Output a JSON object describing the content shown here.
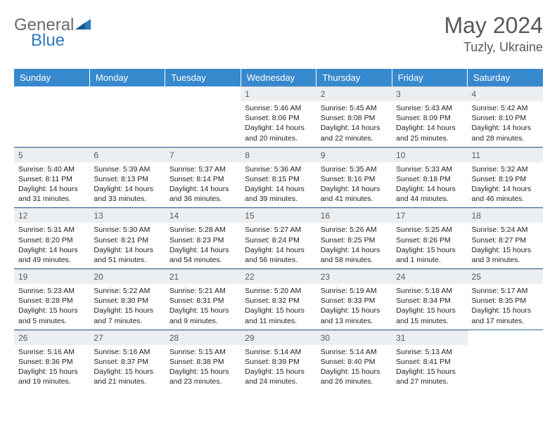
{
  "logo": {
    "general": "General",
    "blue": "Blue"
  },
  "header": {
    "month": "May 2024",
    "location": "Tuzly, Ukraine"
  },
  "colors": {
    "header_bg": "#3789ce",
    "header_text": "#ffffff",
    "daynum_bg": "#eceff1",
    "daynum_text": "#595959",
    "border": "#336699",
    "logo_gray": "#6a6a6a",
    "logo_blue": "#2f7ac0"
  },
  "dayNames": [
    "Sunday",
    "Monday",
    "Tuesday",
    "Wednesday",
    "Thursday",
    "Friday",
    "Saturday"
  ],
  "weeks": [
    [
      null,
      null,
      null,
      {
        "num": "1",
        "sunrise": "Sunrise: 5:46 AM",
        "sunset": "Sunset: 8:06 PM",
        "day1": "Daylight: 14 hours",
        "day2": "and 20 minutes."
      },
      {
        "num": "2",
        "sunrise": "Sunrise: 5:45 AM",
        "sunset": "Sunset: 8:08 PM",
        "day1": "Daylight: 14 hours",
        "day2": "and 22 minutes."
      },
      {
        "num": "3",
        "sunrise": "Sunrise: 5:43 AM",
        "sunset": "Sunset: 8:09 PM",
        "day1": "Daylight: 14 hours",
        "day2": "and 25 minutes."
      },
      {
        "num": "4",
        "sunrise": "Sunrise: 5:42 AM",
        "sunset": "Sunset: 8:10 PM",
        "day1": "Daylight: 14 hours",
        "day2": "and 28 minutes."
      }
    ],
    [
      {
        "num": "5",
        "sunrise": "Sunrise: 5:40 AM",
        "sunset": "Sunset: 8:11 PM",
        "day1": "Daylight: 14 hours",
        "day2": "and 31 minutes."
      },
      {
        "num": "6",
        "sunrise": "Sunrise: 5:39 AM",
        "sunset": "Sunset: 8:13 PM",
        "day1": "Daylight: 14 hours",
        "day2": "and 33 minutes."
      },
      {
        "num": "7",
        "sunrise": "Sunrise: 5:37 AM",
        "sunset": "Sunset: 8:14 PM",
        "day1": "Daylight: 14 hours",
        "day2": "and 36 minutes."
      },
      {
        "num": "8",
        "sunrise": "Sunrise: 5:36 AM",
        "sunset": "Sunset: 8:15 PM",
        "day1": "Daylight: 14 hours",
        "day2": "and 39 minutes."
      },
      {
        "num": "9",
        "sunrise": "Sunrise: 5:35 AM",
        "sunset": "Sunset: 8:16 PM",
        "day1": "Daylight: 14 hours",
        "day2": "and 41 minutes."
      },
      {
        "num": "10",
        "sunrise": "Sunrise: 5:33 AM",
        "sunset": "Sunset: 8:18 PM",
        "day1": "Daylight: 14 hours",
        "day2": "and 44 minutes."
      },
      {
        "num": "11",
        "sunrise": "Sunrise: 5:32 AM",
        "sunset": "Sunset: 8:19 PM",
        "day1": "Daylight: 14 hours",
        "day2": "and 46 minutes."
      }
    ],
    [
      {
        "num": "12",
        "sunrise": "Sunrise: 5:31 AM",
        "sunset": "Sunset: 8:20 PM",
        "day1": "Daylight: 14 hours",
        "day2": "and 49 minutes."
      },
      {
        "num": "13",
        "sunrise": "Sunrise: 5:30 AM",
        "sunset": "Sunset: 8:21 PM",
        "day1": "Daylight: 14 hours",
        "day2": "and 51 minutes."
      },
      {
        "num": "14",
        "sunrise": "Sunrise: 5:28 AM",
        "sunset": "Sunset: 8:23 PM",
        "day1": "Daylight: 14 hours",
        "day2": "and 54 minutes."
      },
      {
        "num": "15",
        "sunrise": "Sunrise: 5:27 AM",
        "sunset": "Sunset: 8:24 PM",
        "day1": "Daylight: 14 hours",
        "day2": "and 56 minutes."
      },
      {
        "num": "16",
        "sunrise": "Sunrise: 5:26 AM",
        "sunset": "Sunset: 8:25 PM",
        "day1": "Daylight: 14 hours",
        "day2": "and 58 minutes."
      },
      {
        "num": "17",
        "sunrise": "Sunrise: 5:25 AM",
        "sunset": "Sunset: 8:26 PM",
        "day1": "Daylight: 15 hours",
        "day2": "and 1 minute."
      },
      {
        "num": "18",
        "sunrise": "Sunrise: 5:24 AM",
        "sunset": "Sunset: 8:27 PM",
        "day1": "Daylight: 15 hours",
        "day2": "and 3 minutes."
      }
    ],
    [
      {
        "num": "19",
        "sunrise": "Sunrise: 5:23 AM",
        "sunset": "Sunset: 8:28 PM",
        "day1": "Daylight: 15 hours",
        "day2": "and 5 minutes."
      },
      {
        "num": "20",
        "sunrise": "Sunrise: 5:22 AM",
        "sunset": "Sunset: 8:30 PM",
        "day1": "Daylight: 15 hours",
        "day2": "and 7 minutes."
      },
      {
        "num": "21",
        "sunrise": "Sunrise: 5:21 AM",
        "sunset": "Sunset: 8:31 PM",
        "day1": "Daylight: 15 hours",
        "day2": "and 9 minutes."
      },
      {
        "num": "22",
        "sunrise": "Sunrise: 5:20 AM",
        "sunset": "Sunset: 8:32 PM",
        "day1": "Daylight: 15 hours",
        "day2": "and 11 minutes."
      },
      {
        "num": "23",
        "sunrise": "Sunrise: 5:19 AM",
        "sunset": "Sunset: 8:33 PM",
        "day1": "Daylight: 15 hours",
        "day2": "and 13 minutes."
      },
      {
        "num": "24",
        "sunrise": "Sunrise: 5:18 AM",
        "sunset": "Sunset: 8:34 PM",
        "day1": "Daylight: 15 hours",
        "day2": "and 15 minutes."
      },
      {
        "num": "25",
        "sunrise": "Sunrise: 5:17 AM",
        "sunset": "Sunset: 8:35 PM",
        "day1": "Daylight: 15 hours",
        "day2": "and 17 minutes."
      }
    ],
    [
      {
        "num": "26",
        "sunrise": "Sunrise: 5:16 AM",
        "sunset": "Sunset: 8:36 PM",
        "day1": "Daylight: 15 hours",
        "day2": "and 19 minutes."
      },
      {
        "num": "27",
        "sunrise": "Sunrise: 5:16 AM",
        "sunset": "Sunset: 8:37 PM",
        "day1": "Daylight: 15 hours",
        "day2": "and 21 minutes."
      },
      {
        "num": "28",
        "sunrise": "Sunrise: 5:15 AM",
        "sunset": "Sunset: 8:38 PM",
        "day1": "Daylight: 15 hours",
        "day2": "and 23 minutes."
      },
      {
        "num": "29",
        "sunrise": "Sunrise: 5:14 AM",
        "sunset": "Sunset: 8:39 PM",
        "day1": "Daylight: 15 hours",
        "day2": "and 24 minutes."
      },
      {
        "num": "30",
        "sunrise": "Sunrise: 5:14 AM",
        "sunset": "Sunset: 8:40 PM",
        "day1": "Daylight: 15 hours",
        "day2": "and 26 minutes."
      },
      {
        "num": "31",
        "sunrise": "Sunrise: 5:13 AM",
        "sunset": "Sunset: 8:41 PM",
        "day1": "Daylight: 15 hours",
        "day2": "and 27 minutes."
      },
      null
    ]
  ]
}
